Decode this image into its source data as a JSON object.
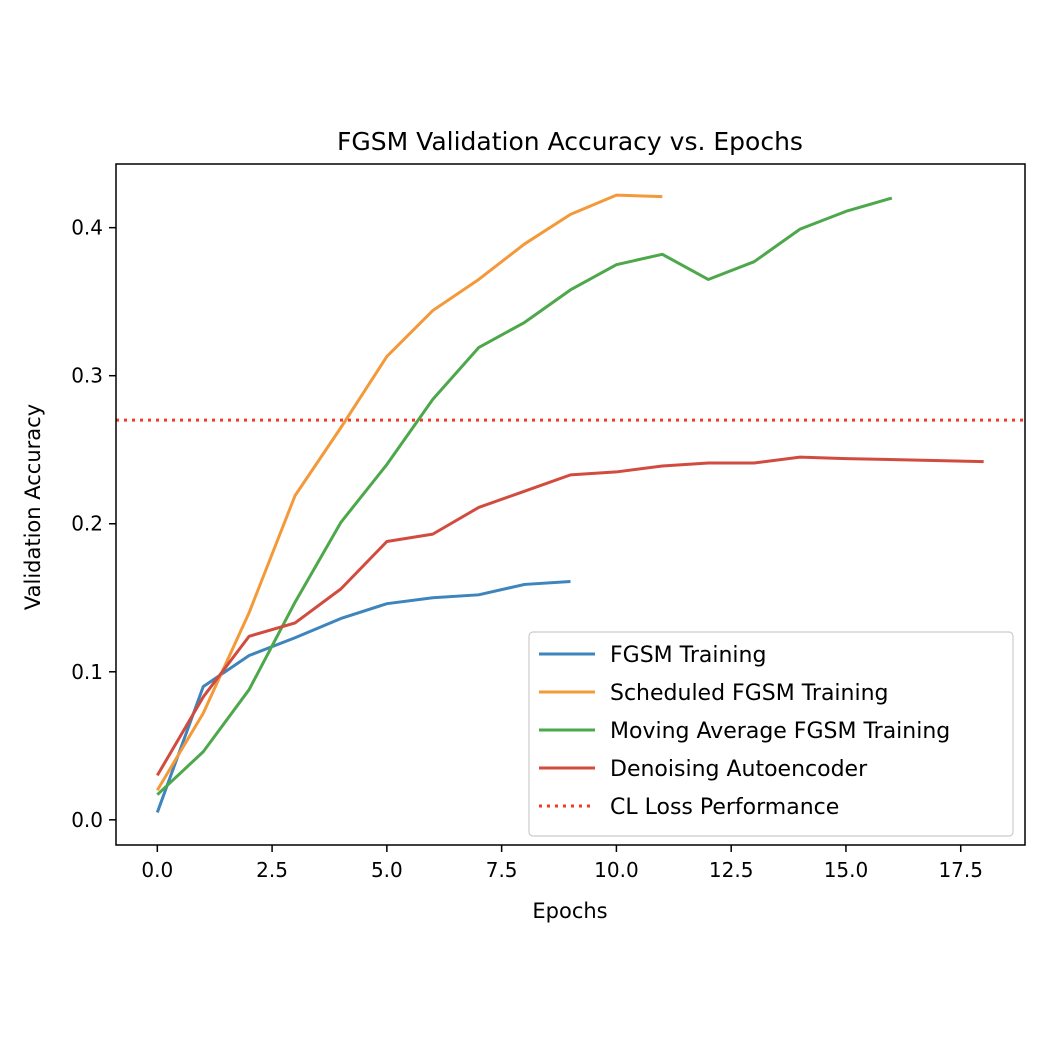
{
  "chart_data": {
    "type": "line",
    "title": "FGSM Validation Accuracy vs. Epochs",
    "xlabel": "Epochs",
    "ylabel": "Validation Accuracy",
    "xlim": [
      -0.9,
      18.9
    ],
    "ylim": [
      -0.017,
      0.443
    ],
    "xticks": [
      0.0,
      2.5,
      5.0,
      7.5,
      10.0,
      12.5,
      15.0,
      17.5
    ],
    "xtick_labels": [
      "0.0",
      "2.5",
      "5.0",
      "7.5",
      "10.0",
      "12.5",
      "15.0",
      "17.5"
    ],
    "yticks": [
      0.0,
      0.1,
      0.2,
      0.3,
      0.4
    ],
    "ytick_labels": [
      "0.0",
      "0.1",
      "0.2",
      "0.3",
      "0.4"
    ],
    "grid": false,
    "legend_position": "lower-right",
    "series": [
      {
        "name": "FGSM Training",
        "color": "#3d85bc",
        "style": "solid",
        "x": [
          0,
          1,
          2,
          3,
          4,
          5,
          6,
          7,
          8,
          9
        ],
        "y": [
          0.005,
          0.09,
          0.111,
          0.123,
          0.136,
          0.146,
          0.15,
          0.152,
          0.159,
          0.161
        ]
      },
      {
        "name": "Scheduled FGSM Training",
        "color": "#f4993a",
        "style": "solid",
        "x": [
          0,
          1,
          2,
          3,
          4,
          5,
          6,
          7,
          8,
          9,
          10,
          11
        ],
        "y": [
          0.02,
          0.072,
          0.14,
          0.219,
          0.265,
          0.313,
          0.344,
          0.365,
          0.389,
          0.409,
          0.422,
          0.421
        ]
      },
      {
        "name": "Moving Average FGSM Training",
        "color": "#4da74b",
        "style": "solid",
        "x": [
          0,
          1,
          2,
          3,
          4,
          5,
          6,
          7,
          8,
          9,
          10,
          11,
          12,
          13,
          14,
          15,
          16
        ],
        "y": [
          0.017,
          0.046,
          0.088,
          0.147,
          0.201,
          0.24,
          0.284,
          0.319,
          0.336,
          0.358,
          0.375,
          0.382,
          0.365,
          0.377,
          0.399,
          0.411,
          0.42
        ]
      },
      {
        "name": "Denoising Autoencoder",
        "color": "#d24b3f",
        "style": "solid",
        "x": [
          0,
          1,
          2,
          3,
          4,
          5,
          6,
          7,
          8,
          9,
          10,
          11,
          12,
          13,
          14,
          15,
          18
        ],
        "y": [
          0.03,
          0.083,
          0.124,
          0.133,
          0.156,
          0.188,
          0.193,
          0.211,
          0.222,
          0.233,
          0.235,
          0.239,
          0.241,
          0.241,
          0.245,
          0.244,
          0.242
        ]
      },
      {
        "name": "CL Loss Performance",
        "color": "#f03a2a",
        "style": "dotted",
        "hline": 0.27
      }
    ]
  }
}
